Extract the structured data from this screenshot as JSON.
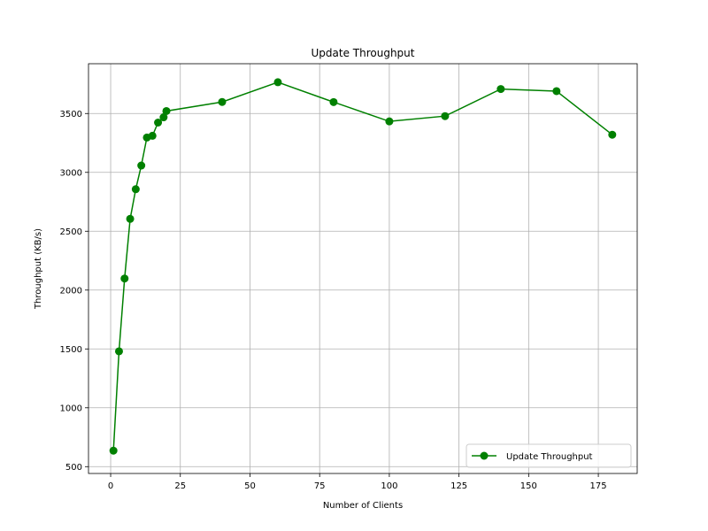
{
  "chart_data": {
    "type": "line",
    "title": "Update Throughput",
    "xlabel": "Number of Clients",
    "ylabel": "Throughput (KB/s)",
    "xlim": [
      -7.95,
      188.95
    ],
    "ylim": [
      442,
      3923
    ],
    "xticks": [
      0,
      25,
      50,
      75,
      100,
      125,
      150,
      175
    ],
    "yticks": [
      500,
      1000,
      1500,
      2000,
      2500,
      3000,
      3500
    ],
    "grid": true,
    "legend": {
      "position": "lower-right"
    },
    "series": [
      {
        "name": "Update Throughput",
        "color": "#008000",
        "marker": "circle",
        "x": [
          1,
          3,
          5,
          7,
          9,
          11,
          13,
          15,
          17,
          19,
          20,
          40,
          60,
          80,
          100,
          120,
          140,
          160,
          180
        ],
        "y": [
          636,
          1480,
          2098,
          2605,
          2857,
          3058,
          3296,
          3311,
          3423,
          3468,
          3521,
          3598,
          3766,
          3597,
          3433,
          3478,
          3708,
          3690,
          3320
        ]
      }
    ]
  }
}
